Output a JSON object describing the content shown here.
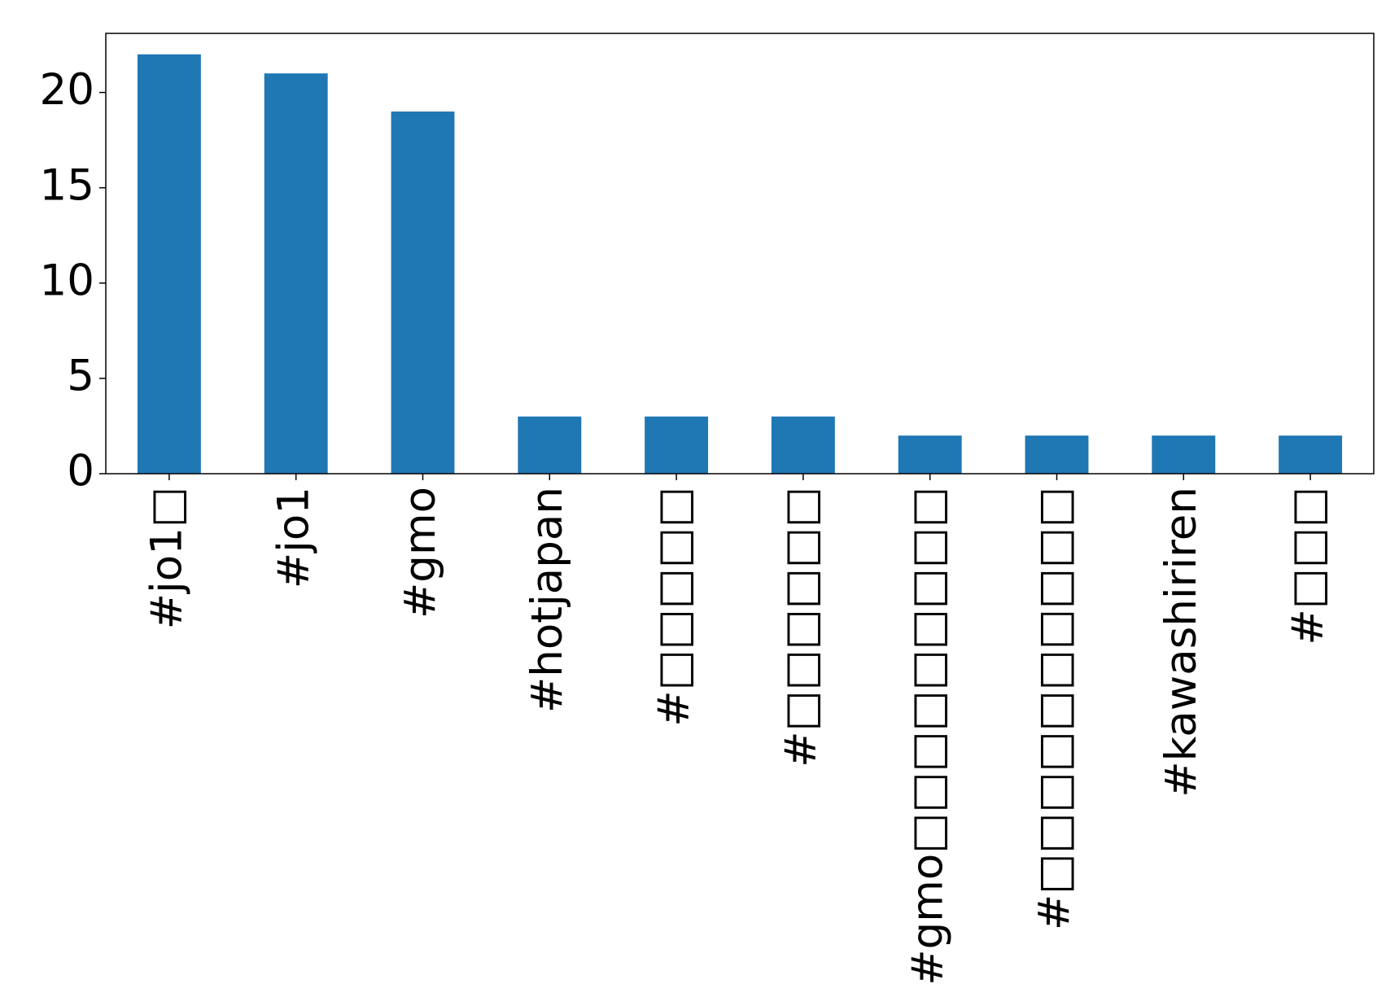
{
  "chart_data": {
    "type": "bar",
    "categories": [
      "#jo1□",
      "#jo1",
      "#gmo",
      "#hotjapan",
      "#□□□□□",
      "#□□□□□□",
      "#gmo□□□□□□□□□",
      "#□□□□□□□□□□",
      "#kawashiriren",
      "#□□□"
    ],
    "values": [
      22,
      21,
      19,
      3,
      3,
      3,
      2,
      2,
      2,
      2
    ],
    "color": "#1f77b4",
    "ylim": [
      0,
      23.1
    ],
    "yticks": [
      0,
      5,
      10,
      15,
      20
    ],
    "grid": false
  }
}
